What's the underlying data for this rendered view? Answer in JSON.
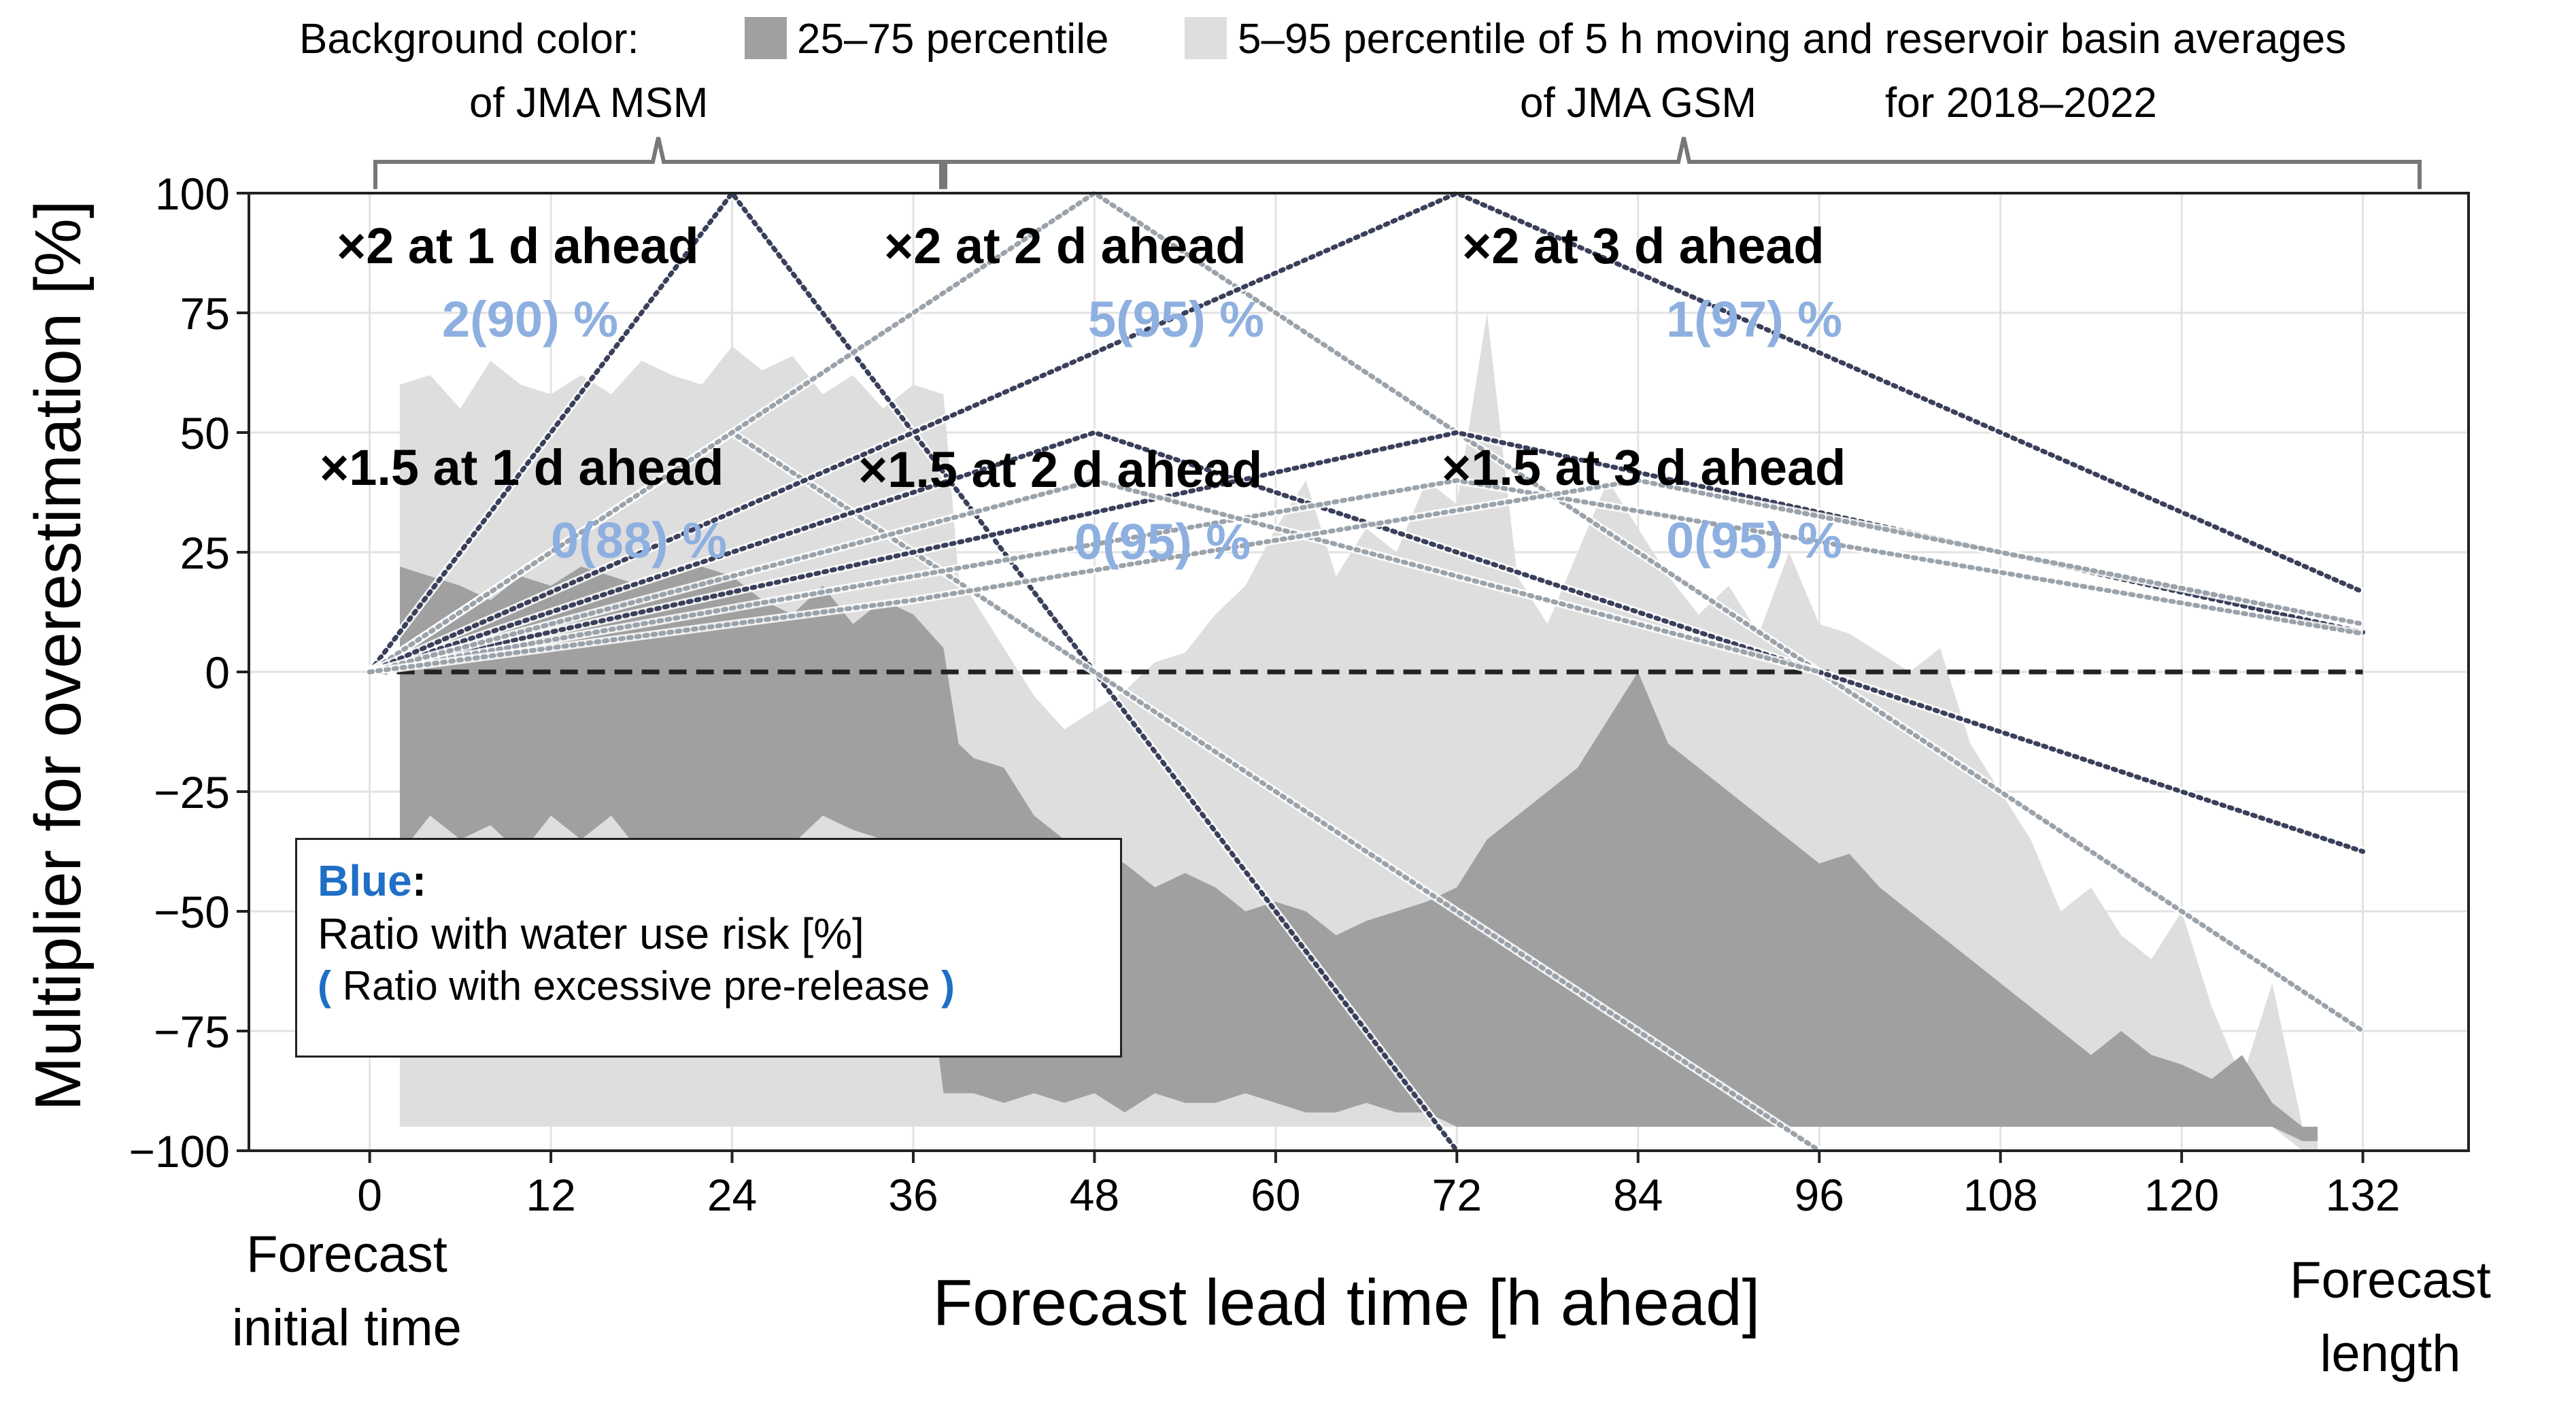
{
  "header": {
    "bg_label": "Background color:",
    "q_label": "25–75 percentile",
    "p_label": "5–95 percentile of 5 h moving and reservoir basin averages",
    "msm_label": "of JMA MSM",
    "gsm_label": "of JMA GSM",
    "period_label": "for 2018–2022"
  },
  "colors": {
    "band_q": "#a0a0a0",
    "band_p": "#dedede",
    "risk_blue": "#8eb0e0",
    "text_blue": "#1f6fc4",
    "line_dark": "#3a3f5a",
    "line_light": "#9aa2aa"
  },
  "legend": {
    "blue_word": "Blue",
    "colon": ":",
    "line2": "Ratio with water use risk [%]",
    "paren_open": "(",
    "line3": " Ratio with excessive pre-release ",
    "paren_close": ")"
  },
  "below_axis": {
    "left_line1": "Forecast",
    "left_line2": "initial time",
    "right_line1": "Forecast",
    "right_line2": "length"
  },
  "chart_data": {
    "type": "area",
    "title": "",
    "xlabel": "Forecast lead time [h ahead]",
    "ylabel": "Multiplier for overestimation  [%]",
    "xlim": [
      -8,
      139
    ],
    "ylim": [
      -100,
      100
    ],
    "xticks": [
      0,
      12,
      24,
      36,
      48,
      60,
      72,
      84,
      96,
      108,
      120,
      132
    ],
    "yticks": [
      100,
      75,
      50,
      25,
      0,
      -25,
      -50,
      -75,
      -100
    ],
    "ytick_labels": [
      "100",
      "75",
      "50",
      "25",
      "0",
      "−25",
      "−50",
      "−75",
      "−100"
    ],
    "grid": true,
    "reference_line": {
      "y": 0,
      "style": "dashed"
    },
    "forecast_models": [
      {
        "name": "JMA MSM",
        "x_range": [
          0,
          39
        ]
      },
      {
        "name": "JMA GSM",
        "x_range": [
          39,
          135
        ]
      }
    ],
    "bands": {
      "x": [
        2,
        4,
        6,
        8,
        10,
        12,
        14,
        16,
        18,
        20,
        22,
        24,
        26,
        28,
        30,
        32,
        34,
        36,
        38,
        39,
        40,
        42,
        44,
        46,
        48,
        50,
        52,
        54,
        56,
        58,
        60,
        62,
        64,
        66,
        68,
        70,
        72,
        74,
        76,
        78,
        80,
        82,
        84,
        86,
        88,
        90,
        92,
        94,
        96,
        98,
        100,
        102,
        104,
        106,
        108,
        110,
        112,
        114,
        116,
        118,
        120,
        122,
        124,
        126,
        128,
        129
      ],
      "p5_95_upper": [
        60,
        62,
        55,
        65,
        60,
        58,
        62,
        58,
        65,
        62,
        60,
        68,
        63,
        66,
        58,
        62,
        55,
        60,
        58,
        20,
        15,
        5,
        -5,
        -12,
        -8,
        -4,
        2,
        4,
        12,
        18,
        30,
        40,
        20,
        30,
        25,
        40,
        35,
        75,
        20,
        10,
        25,
        40,
        30,
        20,
        12,
        18,
        8,
        25,
        10,
        8,
        4,
        0,
        5,
        -15,
        -25,
        -35,
        -50,
        -45,
        -55,
        -60,
        -50,
        -70,
        -85,
        -65,
        -95,
        -95
      ],
      "p5_95_lower": [
        -95,
        -95,
        -95,
        -95,
        -95,
        -95,
        -95,
        -95,
        -95,
        -95,
        -95,
        -95,
        -95,
        -95,
        -95,
        -95,
        -95,
        -95,
        -95,
        -95,
        -95,
        -95,
        -95,
        -95,
        -95,
        -95,
        -95,
        -95,
        -95,
        -95,
        -95,
        -95,
        -95,
        -95,
        -95,
        -95,
        -95,
        -95,
        -95,
        -95,
        -95,
        -95,
        -95,
        -95,
        -95,
        -95,
        -95,
        -95,
        -95,
        -95,
        -95,
        -95,
        -95,
        -95,
        -95,
        -95,
        -95,
        -95,
        -95,
        -95,
        -95,
        -95,
        -95,
        -95,
        -100,
        -100
      ],
      "p25_75_upper": [
        22,
        20,
        18,
        15,
        20,
        18,
        22,
        20,
        18,
        20,
        22,
        20,
        15,
        12,
        18,
        10,
        15,
        12,
        5,
        -15,
        -18,
        -20,
        -30,
        -35,
        -38,
        -40,
        -45,
        -42,
        -45,
        -50,
        -48,
        -50,
        -55,
        -52,
        -50,
        -48,
        -45,
        -35,
        -30,
        -25,
        -20,
        -10,
        0,
        -15,
        -20,
        -25,
        -30,
        -35,
        -40,
        -38,
        -45,
        -50,
        -55,
        -60,
        -65,
        -70,
        -75,
        -80,
        -75,
        -80,
        -82,
        -85,
        -80,
        -90,
        -95,
        -95
      ],
      "p25_75_lower": [
        -38,
        -30,
        -35,
        -32,
        -38,
        -30,
        -35,
        -30,
        -38,
        -35,
        -40,
        -38,
        -35,
        -36,
        -30,
        -33,
        -35,
        -38,
        -88,
        -88,
        -88,
        -90,
        -88,
        -90,
        -88,
        -92,
        -88,
        -90,
        -90,
        -88,
        -90,
        -92,
        -92,
        -90,
        -92,
        -92,
        -95,
        -95,
        -95,
        -95,
        -95,
        -95,
        -95,
        -95,
        -95,
        -95,
        -95,
        -95,
        -95,
        -95,
        -95,
        -95,
        -95,
        -95,
        -95,
        -95,
        -95,
        -95,
        -95,
        -95,
        -95,
        -95,
        -95,
        -95,
        -98,
        -98
      ]
    },
    "scenarios": [
      {
        "label": "×2 at 1 d ahead",
        "lead_h": 24,
        "peak": 100,
        "risk": "2(90) %"
      },
      {
        "label": "×2 at 2 d ahead",
        "lead_h": 48,
        "peak": 100,
        "risk": "5(95) %"
      },
      {
        "label": "×2 at 3 d ahead",
        "lead_h": 72,
        "peak": 100,
        "risk": "1(97) %"
      },
      {
        "label": "×1.5 at 1 d ahead",
        "lead_h": 24,
        "peak": 50,
        "risk": "0(88) %"
      },
      {
        "label": "×1.5 at 2 d ahead",
        "lead_h": 48,
        "peak": 50,
        "risk": "0(95) %"
      },
      {
        "label": "×1.5 at 3 d ahead",
        "lead_h": 72,
        "peak": 50,
        "risk": "0(95) %"
      }
    ],
    "dotted_lines": [
      {
        "tone": "dark",
        "points": [
          [
            0,
            0
          ],
          [
            24,
            100
          ],
          [
            48,
            0
          ],
          [
            72,
            -100
          ]
        ]
      },
      {
        "tone": "light",
        "points": [
          [
            0,
            0
          ],
          [
            24,
            50
          ],
          [
            48,
            0
          ],
          [
            72,
            -50
          ],
          [
            96,
            -100
          ]
        ]
      },
      {
        "tone": "light",
        "points": [
          [
            0,
            0
          ],
          [
            48,
            100
          ],
          [
            96,
            0
          ],
          [
            132,
            -75
          ]
        ]
      },
      {
        "tone": "dark",
        "points": [
          [
            0,
            0
          ],
          [
            48,
            50
          ],
          [
            96,
            0
          ],
          [
            132,
            -37.5
          ]
        ]
      },
      {
        "tone": "dark",
        "points": [
          [
            0,
            0
          ],
          [
            72,
            100
          ],
          [
            132,
            16.7
          ]
        ]
      },
      {
        "tone": "dark",
        "points": [
          [
            0,
            0
          ],
          [
            72,
            50
          ],
          [
            132,
            8.3
          ]
        ]
      },
      {
        "tone": "light",
        "points": [
          [
            0,
            0
          ],
          [
            36,
            20
          ],
          [
            72,
            40
          ],
          [
            132,
            8
          ]
        ]
      },
      {
        "tone": "light",
        "points": [
          [
            0,
            0
          ],
          [
            36,
            30
          ],
          [
            48,
            40
          ],
          [
            96,
            0
          ]
        ]
      },
      {
        "tone": "light",
        "points": [
          [
            0,
            0
          ],
          [
            36,
            15
          ],
          [
            84,
            40
          ],
          [
            132,
            10
          ]
        ]
      }
    ]
  }
}
